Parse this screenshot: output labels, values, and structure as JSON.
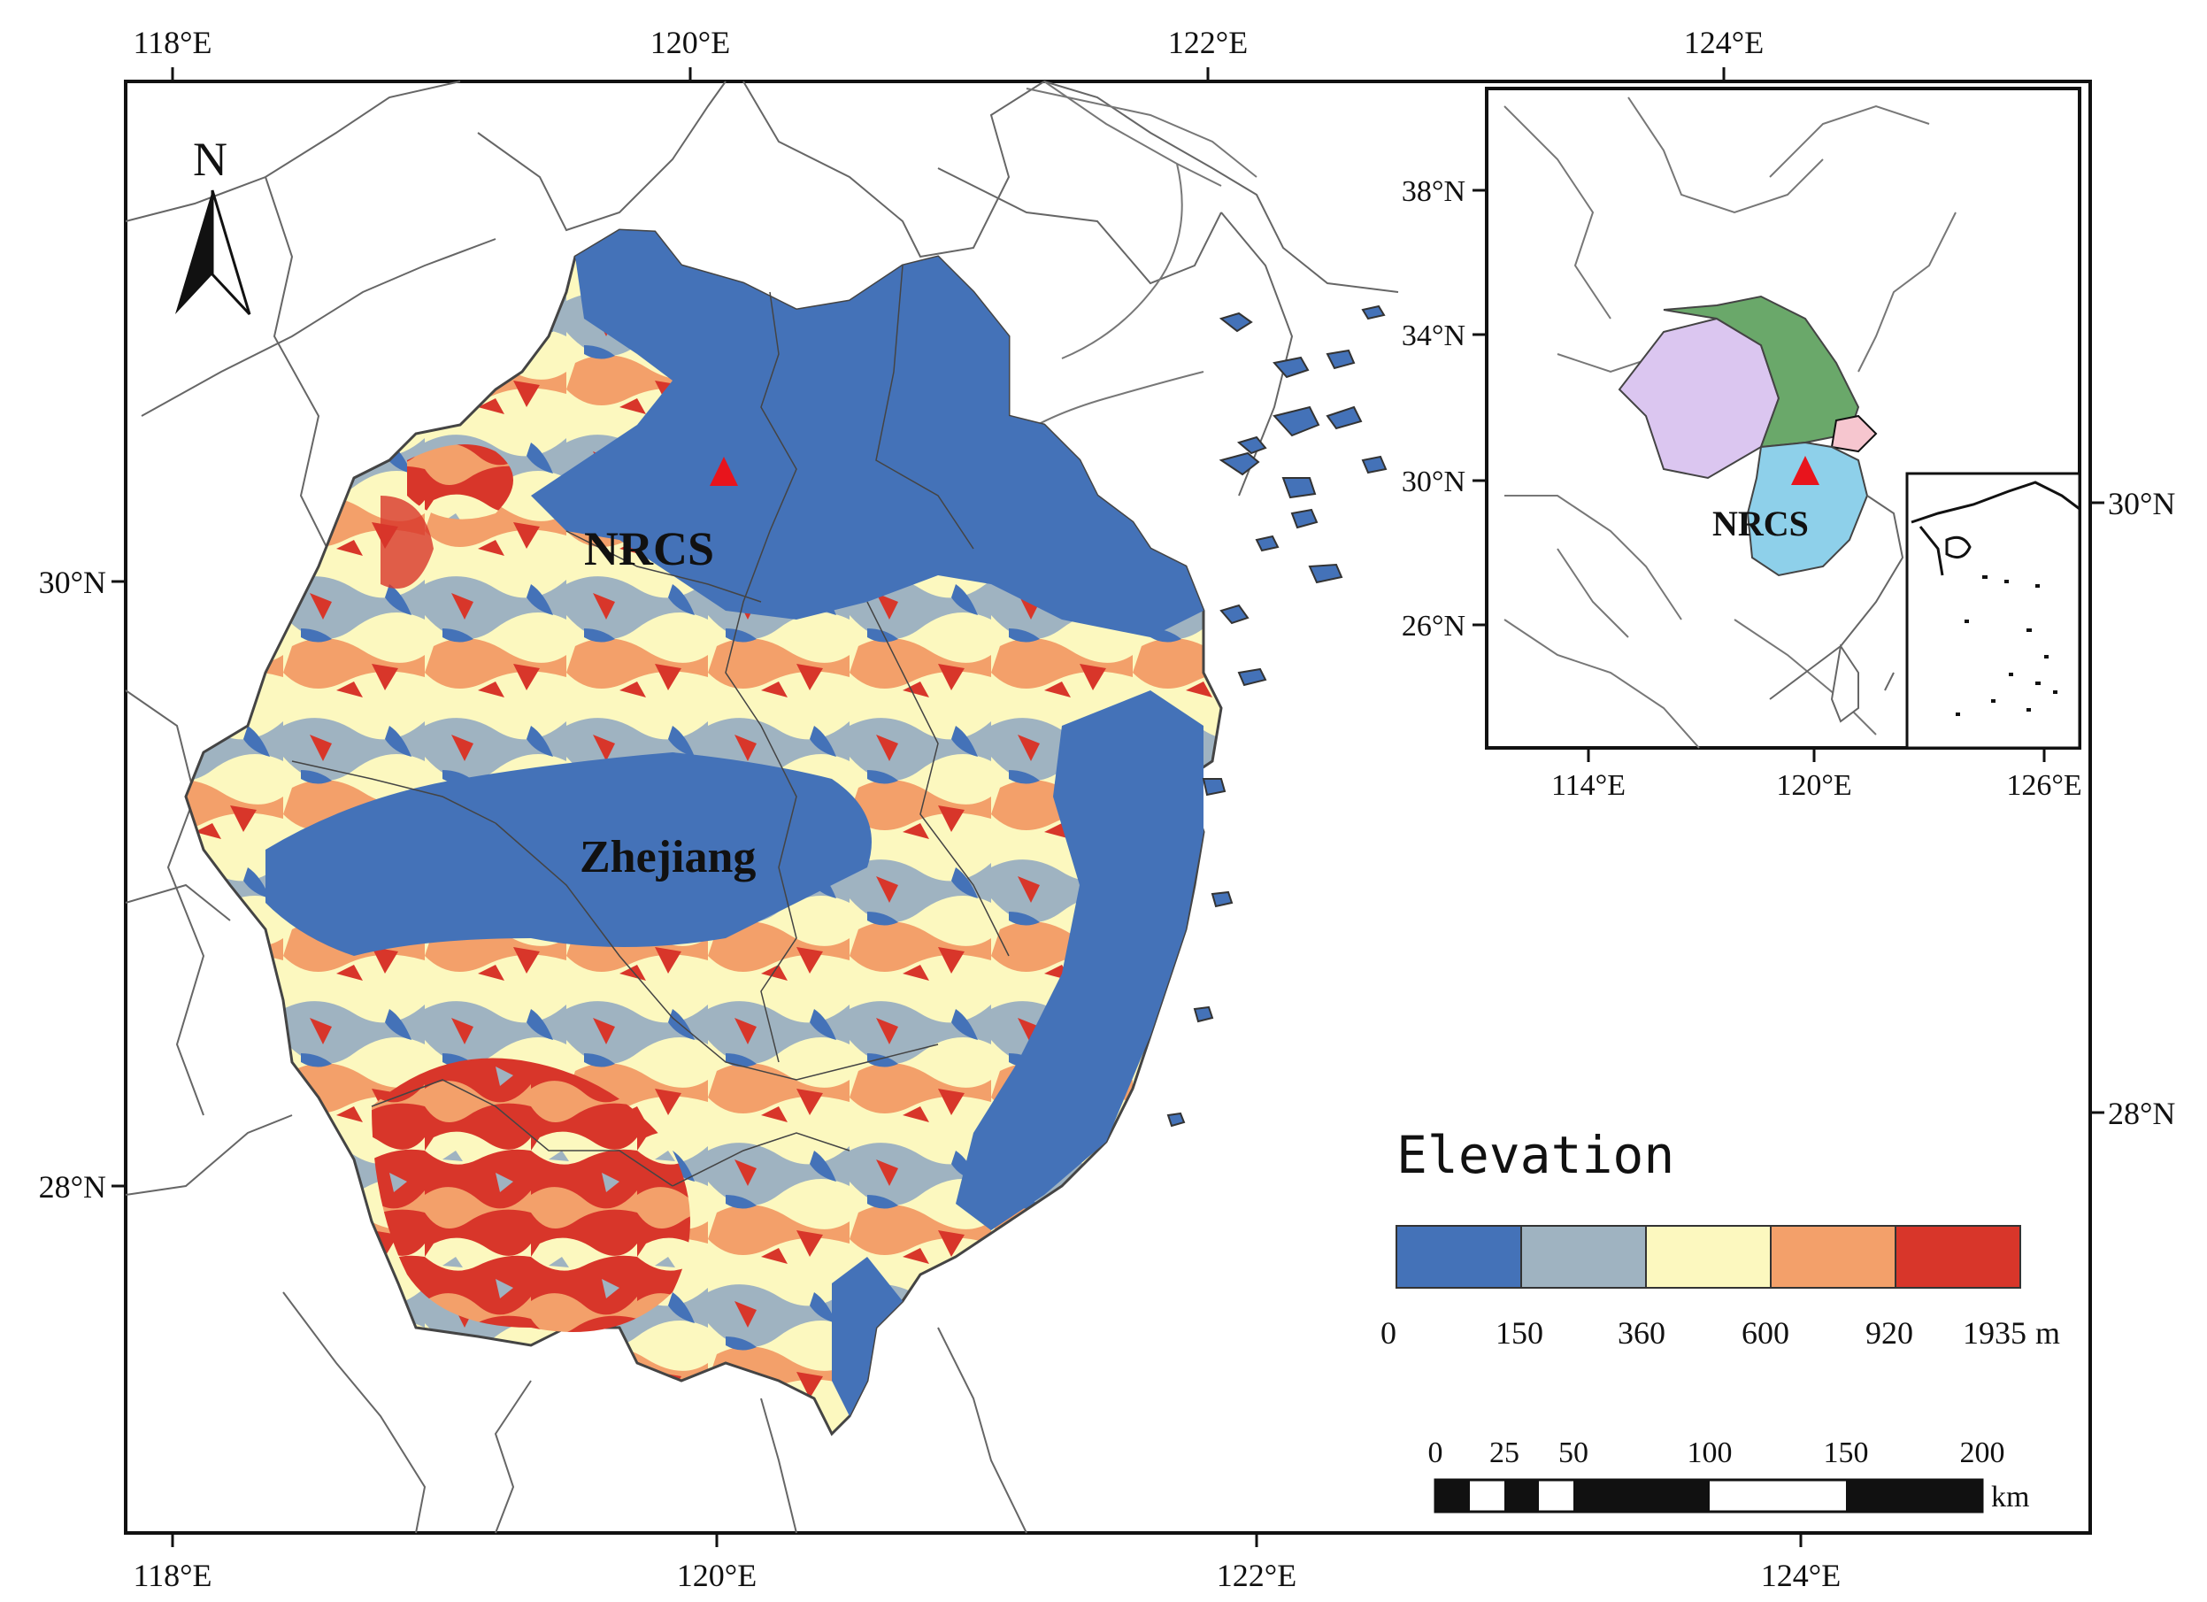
{
  "map": {
    "top_lon_ticks": [
      "118°E",
      "120°E",
      "122°E",
      "124°E"
    ],
    "bottom_lon_ticks": [
      "118°E",
      "120°E",
      "122°E",
      "124°E"
    ],
    "left_lat_ticks": [
      "30°N",
      "28°N"
    ],
    "right_lat_ticks": [
      "30°N",
      "28°N"
    ],
    "north_label": "N",
    "place_labels": {
      "station": "NRCS",
      "province": "Zhejiang"
    },
    "station_marker_color": "#e8141c"
  },
  "inset": {
    "lat_ticks": [
      "38°N",
      "34°N",
      "30°N",
      "26°N"
    ],
    "lon_ticks": [
      "114°E",
      "120°E",
      "126°E"
    ],
    "station": "NRCS",
    "region_colors": {
      "northwest": "#dbc6f0",
      "north": "#6aa86a",
      "south": "#8ed0ea",
      "east": "#f6c6cf"
    }
  },
  "legend": {
    "title": "Elevation",
    "classes": [
      {
        "color": "#4472b8"
      },
      {
        "color": "#9fb3c1"
      },
      {
        "color": "#fcf8bf"
      },
      {
        "color": "#f3a06a"
      },
      {
        "color": "#d8362a"
      }
    ],
    "breaks": [
      "0",
      "150",
      "360",
      "600",
      "920",
      "1935"
    ],
    "unit": "m"
  },
  "scalebar": {
    "labels": [
      "0",
      "25",
      "50",
      "100",
      "150",
      "200"
    ],
    "unit": "km"
  }
}
